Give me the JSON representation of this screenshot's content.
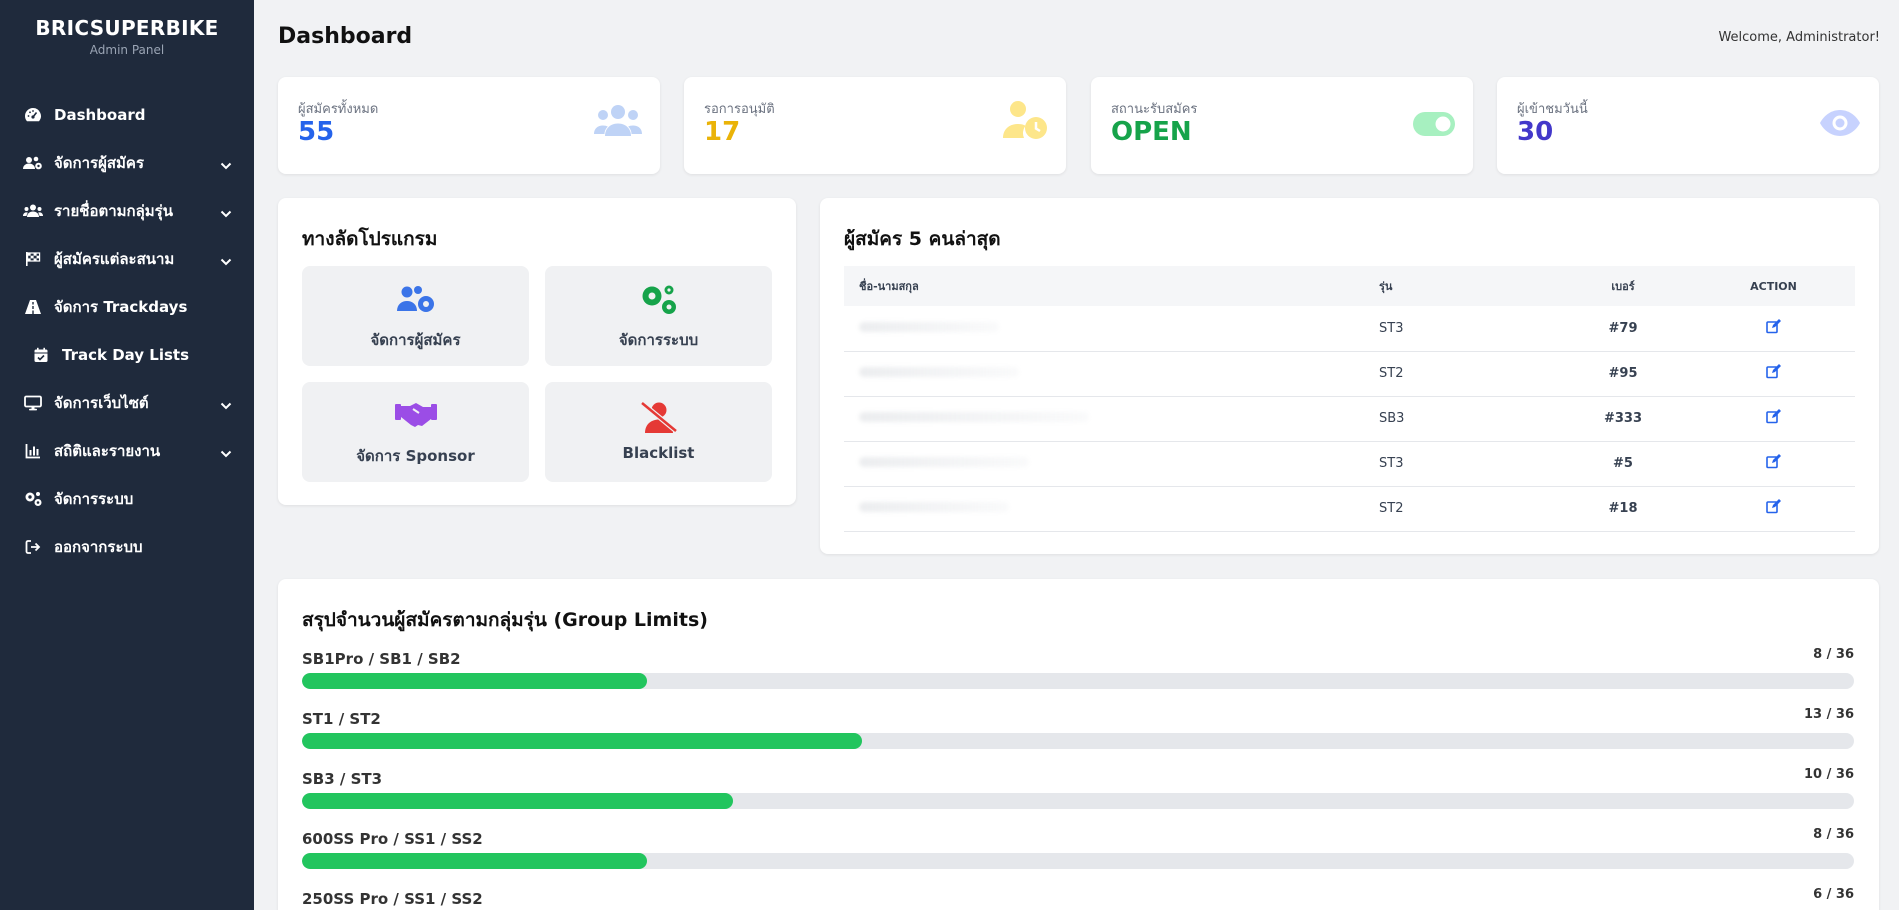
{
  "brand": {
    "title": "BRICSUPERBIKE",
    "subtitle": "Admin Panel"
  },
  "sidebar": {
    "items": [
      {
        "label": "Dashboard",
        "icon": "gauge-icon"
      },
      {
        "label": "จัดการผู้สมัคร",
        "icon": "users-gear-icon",
        "has_submenu": true
      },
      {
        "label": "รายชื่อตามกลุ่มรุ่น",
        "icon": "users-icon",
        "has_submenu": true
      },
      {
        "label": "ผู้สมัครแต่ละสนาม",
        "icon": "flag-checkered-icon",
        "has_submenu": true
      },
      {
        "label": "จัดการ Trackdays",
        "icon": "road-icon"
      },
      {
        "label": "Track Day Lists",
        "icon": "calendar-check-icon"
      },
      {
        "label": "จัดการเว็บไซต์",
        "icon": "desktop-icon",
        "has_submenu": true
      },
      {
        "label": "สถิติและรายงาน",
        "icon": "chart-bar-icon",
        "has_submenu": true
      },
      {
        "label": "จัดการระบบ",
        "icon": "gears-icon"
      },
      {
        "label": "ออกจากระบบ",
        "icon": "sign-out-icon"
      }
    ]
  },
  "header": {
    "title": "Dashboard",
    "welcome": "Welcome, Administrator!"
  },
  "stats": [
    {
      "label": "ผู้สมัครทั้งหมด",
      "value": "55",
      "color": "#2563eb",
      "icon": "users-icon"
    },
    {
      "label": "รอการอนุมัติ",
      "value": "17",
      "color": "#eab308",
      "icon": "user-clock-icon"
    },
    {
      "label": "สถานะรับสมัคร",
      "value": "OPEN",
      "color": "#16a34a",
      "icon": "toggle-on-icon"
    },
    {
      "label": "ผู้เข้าชมวันนี้",
      "value": "30",
      "color": "#4338ca",
      "icon": "eye-icon"
    }
  ],
  "shortcuts": {
    "title": "ทางลัดโปรแกรม",
    "items": [
      {
        "label": "จัดการผู้สมัคร",
        "icon": "users-gear-icon"
      },
      {
        "label": "จัดการระบบ",
        "icon": "gears-icon"
      },
      {
        "label": "จัดการ Sponsor",
        "icon": "handshake-icon"
      },
      {
        "label": "Blacklist",
        "icon": "user-slash-icon"
      }
    ]
  },
  "recent": {
    "title": "ผู้สมัคร 5 คนล่าสุด",
    "columns": [
      "ชื่อ-นามสกุล",
      "รุ่น",
      "เบอร์",
      "ACTION"
    ],
    "rows": [
      {
        "class": "ST3",
        "number": "#79"
      },
      {
        "class": "ST2",
        "number": "#95"
      },
      {
        "class": "SB3",
        "number": "#333"
      },
      {
        "class": "ST3",
        "number": "#5"
      },
      {
        "class": "ST2",
        "number": "#18"
      }
    ]
  },
  "limits": {
    "title": "สรุปจำนวนผู้สมัครตามกลุ่มรุ่น (Group Limits)",
    "groups": [
      {
        "label": "SB1Pro / SB1 / SB2",
        "count": "8 / 36",
        "fraction": 0.222
      },
      {
        "label": "ST1 / ST2",
        "count": "13 / 36",
        "fraction": 0.361
      },
      {
        "label": "SB3 / ST3",
        "count": "10 / 36",
        "fraction": 0.278
      },
      {
        "label": "600SS Pro / SS1 / SS2",
        "count": "8 / 36",
        "fraction": 0.222
      },
      {
        "label": "250SS Pro / SS1 / SS2",
        "count": "6 / 36",
        "fraction": 0.167
      }
    ]
  }
}
